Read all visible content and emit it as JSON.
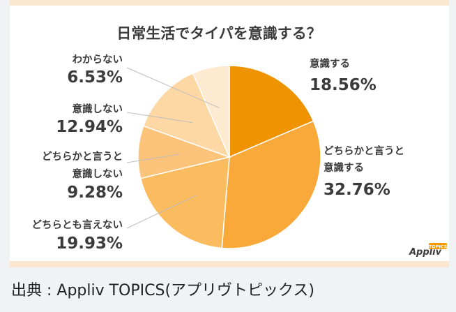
{
  "colors": {
    "frame": "#fbe7cf",
    "leader": "#bdbdbd",
    "slices": [
      "#ef9300",
      "#f9a93a",
      "#fbbc60",
      "#fcc47a",
      "#fdd7a4",
      "#feead0"
    ]
  },
  "logo": {
    "text": "Appliv",
    "badge": "TOPICS"
  },
  "caption": "出典 : Appliv TOPICS(アプリヴトピックス)",
  "chart_data": {
    "type": "pie",
    "title": "日常生活でタイパを意識する？",
    "unit": "%",
    "slices": [
      {
        "label": [
          "意識する"
        ],
        "value": 18.56,
        "value_label": "18.56%"
      },
      {
        "label": [
          "どちらかと言うと",
          "意識する"
        ],
        "value": 32.76,
        "value_label": "32.76%"
      },
      {
        "label": [
          "どちらとも言えない"
        ],
        "value": 19.93,
        "value_label": "19.93%"
      },
      {
        "label": [
          "どちらかと言うと",
          "意識しない"
        ],
        "value": 9.28,
        "value_label": "9.28%"
      },
      {
        "label": [
          "意識しない"
        ],
        "value": 12.94,
        "value_label": "12.94%"
      },
      {
        "label": [
          "わからない"
        ],
        "value": 6.53,
        "value_label": "6.53%"
      }
    ],
    "start_angle_deg": 0,
    "direction": "clockwise",
    "legend": "none"
  }
}
